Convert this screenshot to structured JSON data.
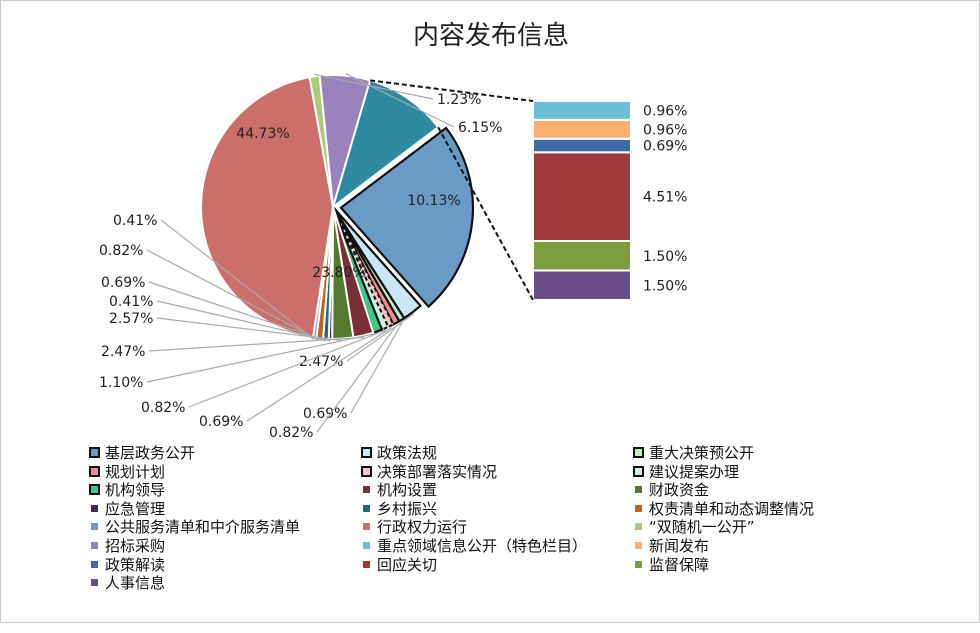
{
  "chart_data": {
    "type": "pie",
    "title": "内容发布信息",
    "slices": [
      {
        "name": "基层政务公开",
        "value": 23.8,
        "label": "23.80%",
        "color": "#6a9bc7"
      },
      {
        "name": "政策法规",
        "value": 2.47,
        "label": "2.47%",
        "color": "#c9e7f7"
      },
      {
        "name": "重大决策预公开",
        "value": 0.69,
        "label": "0.69%",
        "color": "#c4ecc4"
      },
      {
        "name": "规划计划",
        "value": 0.82,
        "label": "0.82%",
        "color": "#f08a95"
      },
      {
        "name": "决策部署落实情况",
        "value": 0.69,
        "label": "0.69%",
        "color": "#f7c2c6"
      },
      {
        "name": "建议提案办理",
        "value": 0.82,
        "label": "0.82%",
        "color": "#cdeee3"
      },
      {
        "name": "机构领导",
        "value": 1.1,
        "label": "1.10%",
        "color": "#33cc88"
      },
      {
        "name": "机构设置",
        "value": 2.47,
        "label": "2.47%",
        "color": "#7a2e35"
      },
      {
        "name": "财政资金",
        "value": 2.57,
        "label": "2.57%",
        "color": "#557a2f"
      },
      {
        "name": "应急管理",
        "value": 0.41,
        "label": "0.41%",
        "color": "#3e2b58"
      },
      {
        "name": "乡村振兴",
        "value": 0.69,
        "label": "0.69%",
        "color": "#1f6a7a"
      },
      {
        "name": "权责清单和动态调整情况",
        "value": 0.82,
        "label": "0.82%",
        "color": "#c0651e"
      },
      {
        "name": "公共服务清单和中介服务清单",
        "value": 0.41,
        "label": "0.41%",
        "color": "#7597c9"
      },
      {
        "name": "行政权力运行",
        "value": 44.73,
        "label": "44.73%",
        "color": "#cc6f6a"
      },
      {
        "name": "“双随机一公开”",
        "value": 1.23,
        "label": "1.23%",
        "color": "#a8cc7a"
      },
      {
        "name": "招标采购",
        "value": 6.15,
        "label": "6.15%",
        "color": "#9a82bd"
      },
      {
        "name": "重点领域信息公开（特色栏目）",
        "value": 10.13,
        "label": "10.13%",
        "color": "#2e8aa0",
        "group": "other"
      }
    ],
    "breakout": {
      "source_slice": "重点领域信息公开（特色栏目）",
      "segments": [
        {
          "name": "人事信息",
          "value": 1.5,
          "label": "1.50%",
          "color": "#6b4c8c"
        },
        {
          "name": "监督保障",
          "value": 1.5,
          "label": "1.50%",
          "color": "#7b9e3e"
        },
        {
          "name": "回应关切",
          "value": 4.51,
          "label": "4.51%",
          "color": "#a03a3a"
        },
        {
          "name": "政策解读",
          "value": 0.69,
          "label": "0.69%",
          "color": "#3e6aa5"
        },
        {
          "name": "新闻发布",
          "value": 0.96,
          "label": "0.96%",
          "color": "#f8b070"
        },
        {
          "name": "重点领域信息公开（特色栏目）",
          "value": 0.96,
          "label": "0.96%",
          "color": "#6cc0d6"
        }
      ]
    },
    "legend_position": "bottom"
  },
  "legend": [
    {
      "label": "基层政务公开",
      "color": "#6a9bc7",
      "style": "box"
    },
    {
      "label": "政策法规",
      "color": "#c9e7f7",
      "style": "box"
    },
    {
      "label": "重大决策预公开",
      "color": "#c4ecc4",
      "style": "box"
    },
    {
      "label": "规划计划",
      "color": "#f08a95",
      "style": "box"
    },
    {
      "label": "决策部署落实情况",
      "color": "#f7c2c6",
      "style": "dashed"
    },
    {
      "label": "建议提案办理",
      "color": "#cdeee3",
      "style": "dashed"
    },
    {
      "label": "机构领导",
      "color": "#33cc88",
      "style": "box"
    },
    {
      "label": "机构设置",
      "color": "#7a2e35",
      "style": "small"
    },
    {
      "label": "财政资金",
      "color": "#557a2f",
      "style": "small"
    },
    {
      "label": "应急管理",
      "color": "#3e2b58",
      "style": "small"
    },
    {
      "label": "乡村振兴",
      "color": "#1f6a7a",
      "style": "small"
    },
    {
      "label": "权责清单和动态调整情况",
      "color": "#c0651e",
      "style": "small"
    },
    {
      "label": "公共服务清单和中介服务清单",
      "color": "#7597c9",
      "style": "small"
    },
    {
      "label": "行政权力运行",
      "color": "#cc6f6a",
      "style": "small"
    },
    {
      "label": "“双随机一公开”",
      "color": "#a8cc7a",
      "style": "small"
    },
    {
      "label": "招标采购",
      "color": "#9a82bd",
      "style": "small"
    },
    {
      "label": "重点领域信息公开（特色栏目）",
      "color": "#6cc0d6",
      "style": "small"
    },
    {
      "label": "新闻发布",
      "color": "#f8b070",
      "style": "small"
    },
    {
      "label": "政策解读",
      "color": "#3e6aa5",
      "style": "small"
    },
    {
      "label": "回应关切",
      "color": "#a03a3a",
      "style": "small"
    },
    {
      "label": "监督保障",
      "color": "#7b9e3e",
      "style": "small"
    },
    {
      "label": "人事信息",
      "color": "#6b4c8c",
      "style": "small"
    }
  ]
}
